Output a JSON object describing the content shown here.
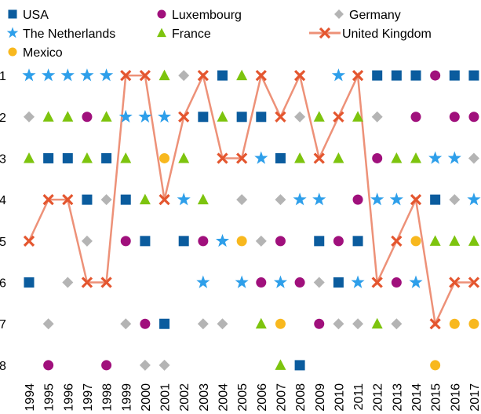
{
  "chart_data": {
    "type": "rank",
    "categories": [
      "1994",
      "1995",
      "1996",
      "1997",
      "1998",
      "1999",
      "2000",
      "2001",
      "2002",
      "2003",
      "2004",
      "2005",
      "2006",
      "2007",
      "2008",
      "2009",
      "2010",
      "2011",
      "2012",
      "2013",
      "2014",
      "2015",
      "2016",
      "2017"
    ],
    "ylim": [
      8.4,
      0.6
    ],
    "yticks": [
      1,
      2,
      3,
      4,
      5,
      6,
      7,
      8
    ],
    "series": [
      {
        "name": "USA",
        "color": "#0b5c9e",
        "marker": "square",
        "values": [
          6,
          3,
          3,
          4,
          3,
          4,
          5,
          7,
          5,
          2,
          1,
          2,
          2,
          3,
          8,
          5,
          6,
          5,
          1,
          1,
          1,
          4,
          1,
          1
        ]
      },
      {
        "name": "Luxembourg",
        "color": "#a0107c",
        "marker": "circle",
        "values": [
          null,
          8,
          null,
          2,
          8,
          5,
          7,
          null,
          null,
          5,
          null,
          null,
          6,
          5,
          6,
          7,
          5,
          4,
          3,
          6,
          2,
          1,
          2,
          2
        ]
      },
      {
        "name": "Germany",
        "color": "#b4b4b4",
        "marker": "diamond",
        "values": [
          2,
          7,
          6,
          5,
          4,
          7,
          8,
          8,
          1,
          7,
          7,
          4,
          5,
          4,
          2,
          6,
          7,
          7,
          2,
          7,
          null,
          null,
          4,
          3
        ]
      },
      {
        "name": "The Netherlands",
        "color": "#2e9fea",
        "marker": "star",
        "values": [
          1,
          1,
          1,
          1,
          1,
          2,
          2,
          2,
          4,
          6,
          5,
          6,
          3,
          6,
          4,
          4,
          1,
          6,
          4,
          4,
          6,
          3,
          3,
          4
        ]
      },
      {
        "name": "France",
        "color": "#7dc40e",
        "marker": "triangle",
        "values": [
          3,
          2,
          2,
          3,
          2,
          3,
          4,
          1,
          3,
          4,
          2,
          1,
          7,
          8,
          3,
          2,
          3,
          2,
          7,
          3,
          3,
          5,
          5,
          5
        ]
      },
      {
        "name": "United Kingdom",
        "color": "#e4562f",
        "marker": "x",
        "line": true,
        "values": [
          5,
          4,
          4,
          6,
          6,
          1,
          1,
          4,
          2,
          1,
          3,
          3,
          1,
          2,
          1,
          3,
          2,
          1,
          6,
          5,
          4,
          7,
          6,
          6
        ]
      },
      {
        "name": "Mexico",
        "color": "#f8b81e",
        "marker": "circle",
        "values": [
          null,
          null,
          null,
          null,
          null,
          null,
          null,
          3,
          null,
          null,
          null,
          5,
          null,
          7,
          null,
          null,
          null,
          null,
          null,
          null,
          5,
          8,
          7,
          7
        ]
      }
    ]
  }
}
